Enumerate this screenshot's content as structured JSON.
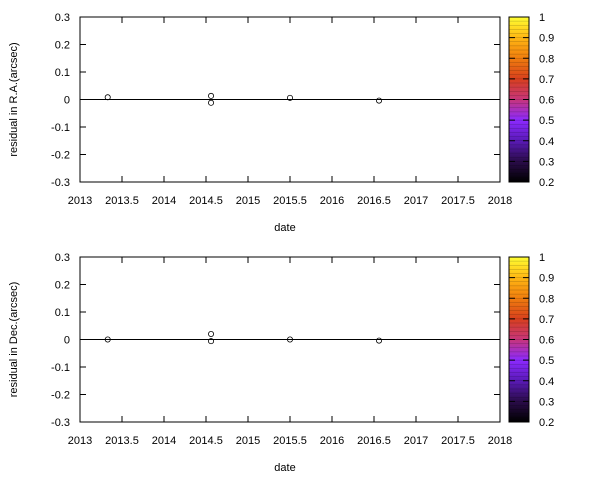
{
  "chart_data": [
    {
      "type": "scatter",
      "xlabel": "date",
      "ylabel": "residual in R.A.(arcsec)",
      "xlim": [
        2013,
        2018
      ],
      "ylim": [
        -0.3,
        0.3
      ],
      "xticks": [
        "2013",
        "2013.5",
        "2014",
        "2014.5",
        "2015",
        "2015.5",
        "2016",
        "2016.5",
        "2017",
        "2017.5",
        "2018"
      ],
      "yticks": [
        "-0.3",
        "-0.2",
        "-0.1",
        "0",
        "0.1",
        "0.2",
        "0.3"
      ],
      "zero_line": true,
      "grid": false,
      "marker": "open-circle",
      "points": [
        {
          "x": 2013.33,
          "y": 0.008
        },
        {
          "x": 2014.56,
          "y": 0.013
        },
        {
          "x": 2014.56,
          "y": -0.012
        },
        {
          "x": 2015.5,
          "y": 0.006
        },
        {
          "x": 2016.56,
          "y": -0.004
        }
      ],
      "colorbar": {
        "range": [
          0.2,
          1
        ],
        "ticks": [
          "1",
          "0.9",
          "0.8",
          "0.7",
          "0.6",
          "0.5",
          "0.4",
          "0.3",
          "0.2"
        ],
        "colors": [
          "#000000",
          "#2a0c4a",
          "#5a1ab8",
          "#8c2aff",
          "#c7357a",
          "#d8401d",
          "#f07d0e",
          "#ffb713",
          "#ffff33"
        ]
      }
    },
    {
      "type": "scatter",
      "xlabel": "date",
      "ylabel": "residual in Dec.(arcsec)",
      "xlim": [
        2013,
        2018
      ],
      "ylim": [
        -0.3,
        0.3
      ],
      "xticks": [
        "2013",
        "2013.5",
        "2014",
        "2014.5",
        "2015",
        "2015.5",
        "2016",
        "2016.5",
        "2017",
        "2017.5",
        "2018"
      ],
      "yticks": [
        "-0.3",
        "-0.2",
        "-0.1",
        "0",
        "0.1",
        "0.2",
        "0.3"
      ],
      "zero_line": true,
      "grid": false,
      "marker": "open-circle",
      "points": [
        {
          "x": 2013.33,
          "y": 0.0
        },
        {
          "x": 2014.56,
          "y": 0.02
        },
        {
          "x": 2014.56,
          "y": -0.006
        },
        {
          "x": 2015.5,
          "y": 0.0
        },
        {
          "x": 2016.56,
          "y": -0.004
        }
      ],
      "colorbar": {
        "range": [
          0.2,
          1
        ],
        "ticks": [
          "1",
          "0.9",
          "0.8",
          "0.7",
          "0.6",
          "0.5",
          "0.4",
          "0.3",
          "0.2"
        ],
        "colors": [
          "#000000",
          "#2a0c4a",
          "#5a1ab8",
          "#8c2aff",
          "#c7357a",
          "#d8401d",
          "#f07d0e",
          "#ffb713",
          "#ffff33"
        ]
      }
    }
  ]
}
